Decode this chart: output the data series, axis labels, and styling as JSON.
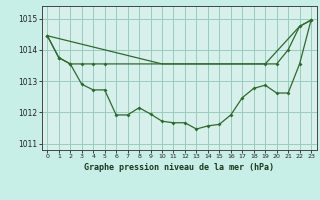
{
  "bg_color": "#c8eee8",
  "plot_bg_color": "#d8f0ec",
  "grid_color": "#98ccbc",
  "line_color": "#2d6a2d",
  "title": "Graphe pression niveau de la mer (hPa)",
  "xlim": [
    -0.5,
    23.5
  ],
  "ylim": [
    1010.8,
    1015.4
  ],
  "yticks": [
    1011,
    1012,
    1013,
    1014,
    1015
  ],
  "xticks": [
    0,
    1,
    2,
    3,
    4,
    5,
    6,
    7,
    8,
    9,
    10,
    11,
    12,
    13,
    14,
    15,
    16,
    17,
    18,
    19,
    20,
    21,
    22,
    23
  ],
  "line1_x": [
    0,
    1,
    2,
    3,
    4,
    5,
    19,
    20,
    21,
    22,
    23
  ],
  "line1_y": [
    1014.45,
    1013.75,
    1013.55,
    1013.55,
    1013.55,
    1013.55,
    1013.55,
    1013.55,
    1014.0,
    1014.75,
    1014.95
  ],
  "line2_x": [
    0,
    1,
    2,
    3,
    4,
    5,
    6,
    7,
    8,
    9,
    10,
    11,
    12,
    13,
    14,
    15,
    16,
    17,
    18,
    19,
    20,
    21,
    22,
    23
  ],
  "line2_y": [
    1014.45,
    1013.75,
    1013.55,
    1012.9,
    1012.72,
    1012.72,
    1011.92,
    1011.92,
    1012.15,
    1011.95,
    1011.72,
    1011.67,
    1011.67,
    1011.47,
    1011.57,
    1011.62,
    1011.92,
    1012.47,
    1012.77,
    1012.87,
    1012.62,
    1012.62,
    1013.55,
    1014.95
  ],
  "line3_x": [
    0,
    10,
    19,
    22,
    23
  ],
  "line3_y": [
    1014.45,
    1013.55,
    1013.55,
    1014.75,
    1014.95
  ],
  "marker": "D",
  "markersize": 2.0,
  "linewidth": 0.9
}
